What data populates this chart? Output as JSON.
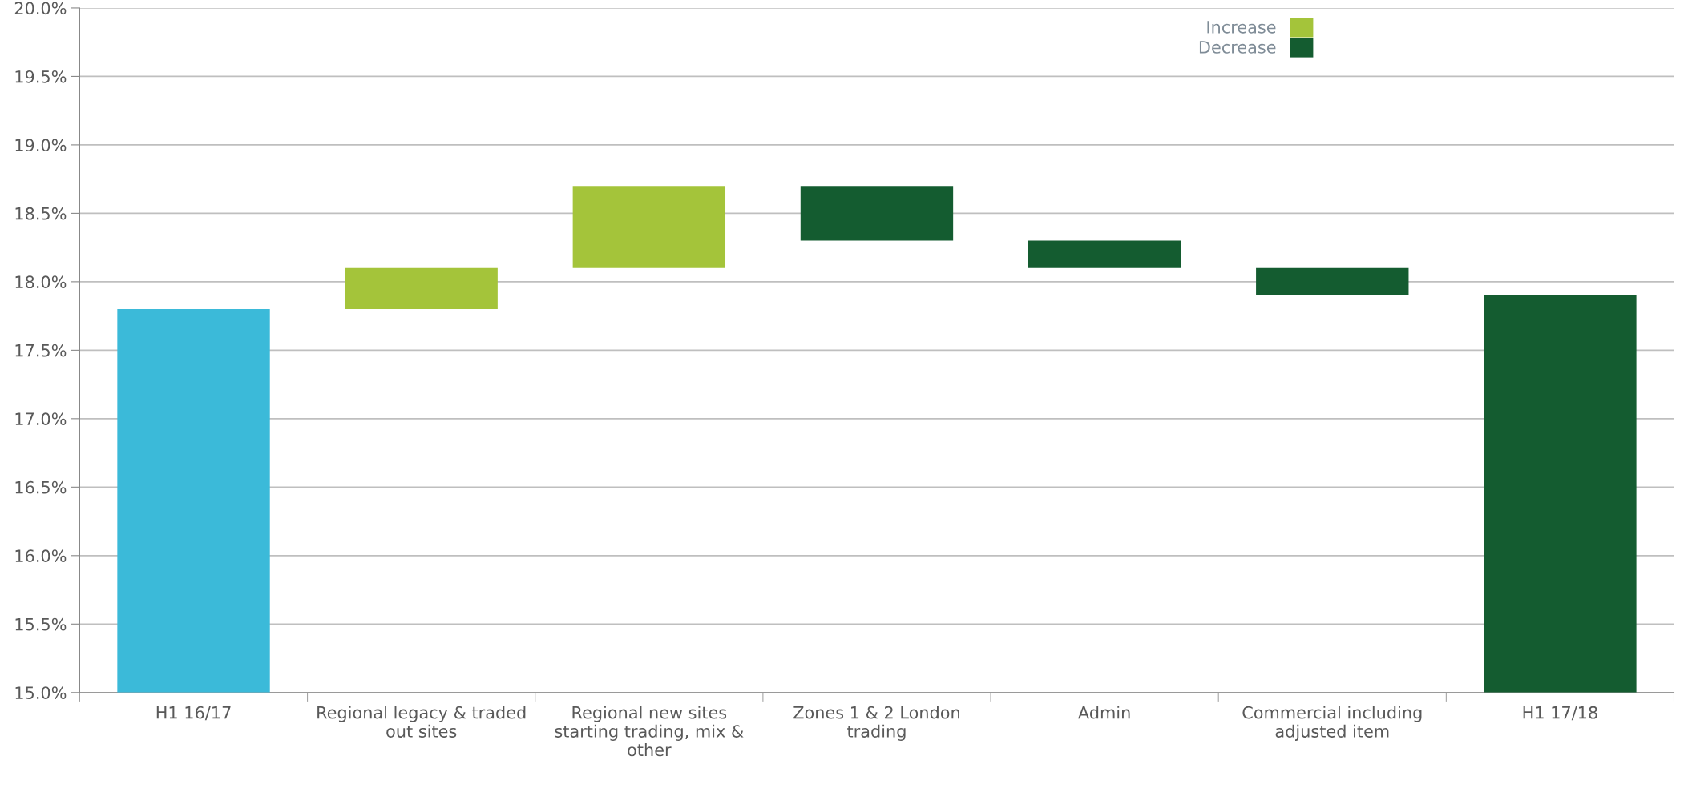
{
  "chart_data": {
    "type": "bar",
    "categories": [
      "H1 16/17",
      "Regional legacy & traded out sites",
      "Regional new sites starting trading, mix & other",
      "Zones 1 & 2 London trading",
      "Admin",
      "Commercial including adjusted item",
      "H1 17/18"
    ],
    "series": [
      {
        "color": "#3bbad9",
        "base": [
          15.0,
          null,
          null,
          null,
          null,
          null,
          null
        ],
        "values": [
          2.8,
          null,
          null,
          null,
          null,
          null,
          null
        ]
      },
      {
        "name": "Increase",
        "color": "#a4c43a",
        "base": [
          null,
          17.8,
          18.1,
          null,
          null,
          null,
          null
        ],
        "values": [
          null,
          0.3,
          0.6,
          null,
          null,
          null,
          null
        ]
      },
      {
        "name": "Decrease",
        "color": "#145c30",
        "base": [
          null,
          null,
          null,
          18.7,
          18.3,
          18.1,
          15.0
        ],
        "values": [
          null,
          null,
          null,
          -0.4,
          -0.2,
          -0.2,
          2.9
        ]
      }
    ],
    "ylim": [
      15.0,
      20.0
    ],
    "yticks": [
      {
        "value": 15.0,
        "label": "15.0%"
      },
      {
        "value": 15.5,
        "label": "15.5%"
      },
      {
        "value": 16.0,
        "label": "16.0%"
      },
      {
        "value": 16.5,
        "label": "16.5%"
      },
      {
        "value": 17.0,
        "label": "17.0%"
      },
      {
        "value": 17.5,
        "label": "17.5%"
      },
      {
        "value": 18.0,
        "label": "18.0%"
      },
      {
        "value": 18.5,
        "label": "18.5%"
      },
      {
        "value": 19.0,
        "label": "19.0%"
      },
      {
        "value": 19.5,
        "label": "19.5%"
      },
      {
        "value": 20.0,
        "label": "20.0%"
      }
    ],
    "grid": "y",
    "legend": "top right"
  }
}
